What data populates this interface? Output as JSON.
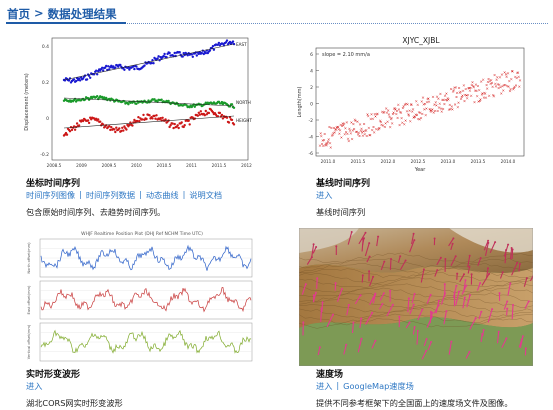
{
  "breadcrumb": {
    "home": "首页",
    "separator": ">",
    "current": "数据处理结果"
  },
  "cards": [
    {
      "title": "坐标时间序列",
      "links": [
        "时间序列图像",
        "时间序列数据",
        "动态曲线",
        "说明文档"
      ],
      "description": "包含原始时间序列、去趋势时间序列。",
      "figure": {
        "ylabel": "Displacement (meters)",
        "series_labels": [
          "EAST",
          "NORTH",
          "HEIGHT"
        ],
        "series_colors": [
          "#1a1ad0",
          "#1a9a2a",
          "#cc1818"
        ],
        "y_ticks": [
          "0.4",
          "0.2",
          "0",
          "-0.2"
        ],
        "x_ticks": [
          "2008.5",
          "2009",
          "2009.5",
          "2010",
          "2010.5",
          "2011",
          "2011.5",
          "2012"
        ]
      }
    },
    {
      "title": "基线时间序列",
      "links": [
        "进入"
      ],
      "description": "基线时间序列",
      "figure": {
        "title": "XJYC_XJBL",
        "annotation": "slope = 2.10 mm/a",
        "ylabel": "Length(mm)",
        "xlabel": "Year",
        "y_ticks": [
          "6",
          "4",
          "2",
          "0",
          "-2",
          "-4",
          "-6"
        ],
        "x_ticks": [
          "2011.0",
          "2011.5",
          "2012.0",
          "2012.5",
          "2013.0",
          "2013.5",
          "2014.0"
        ],
        "color": "#d42020"
      }
    },
    {
      "title": "实时形变波形",
      "links": [
        "进入"
      ],
      "description": "湖北CORS网实时形变波形",
      "figure": {
        "title": "WHJF Realtime Position Plot (DHJ Ref NCHM Time UTC)",
        "panel_labels": [
          "North offset(mm)",
          "East offset(mm)",
          "Vertical offset(mm)"
        ],
        "panel_colors": [
          "#2a5fc8",
          "#c83a3a",
          "#7faa2a"
        ]
      }
    },
    {
      "title": "速度场",
      "links": [
        "进入",
        "GoogleMap速度场"
      ],
      "description": "提供不同参考框架下的全国面上的速度场文件及图像。",
      "figure": {
        "arrow_colors": [
          "#e23b8e",
          "#c0305a"
        ]
      }
    }
  ]
}
